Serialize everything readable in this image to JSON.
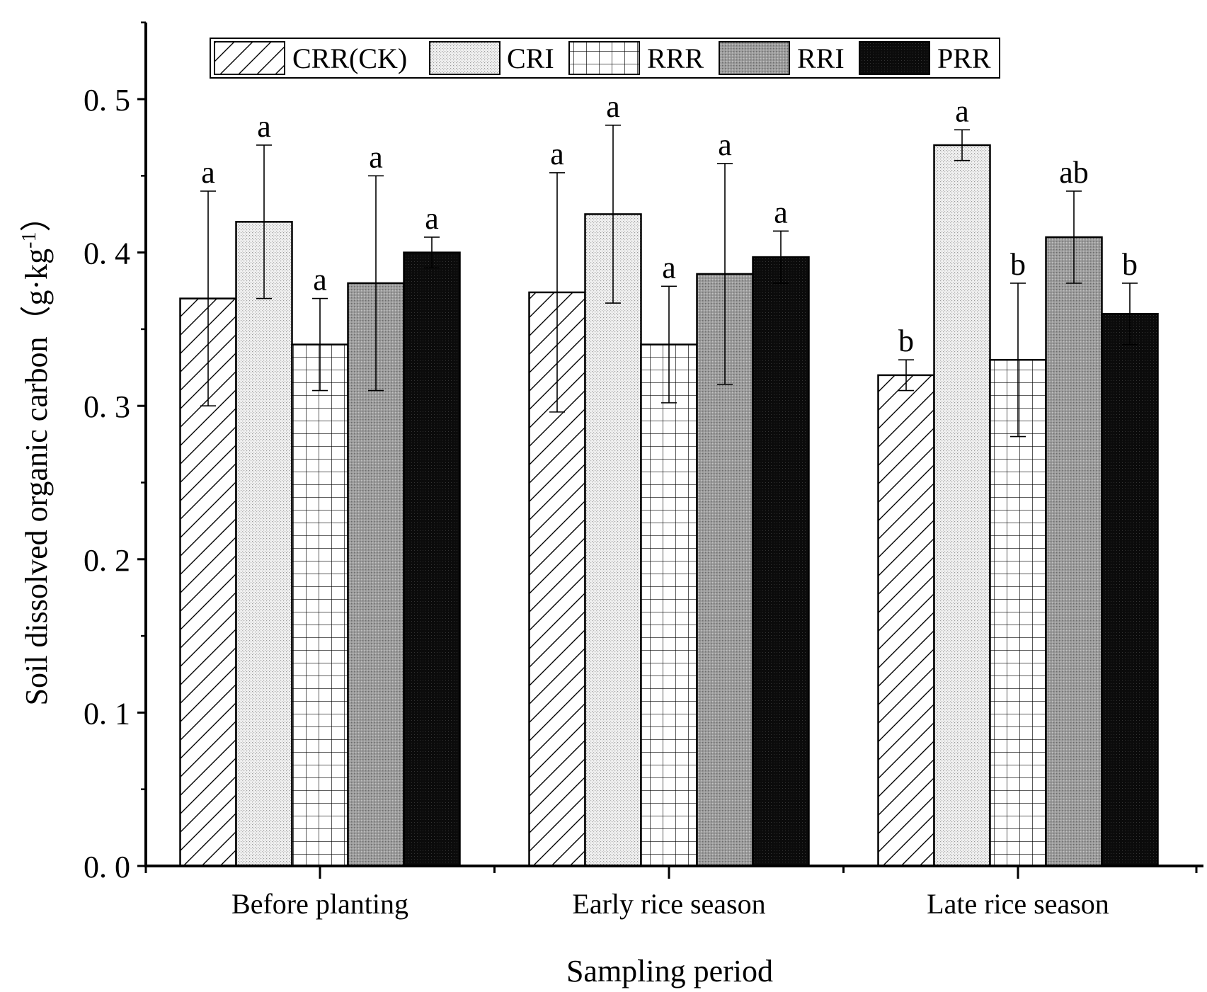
{
  "chart_data": {
    "type": "bar",
    "title": "",
    "xlabel": "Sampling period",
    "ylabel": "Soil dissolved organic carbon（g·kg",
    "ylabel_sup": "-1",
    "ylabel_close": "）",
    "ylim": [
      0,
      0.55
    ],
    "yticks": [
      0.0,
      0.1,
      0.2,
      0.3,
      0.4,
      0.5
    ],
    "ytick_labels": [
      "0. 0",
      "0. 1",
      "0. 2",
      "0. 3",
      "0. 4",
      "0. 5"
    ],
    "categories": [
      "Before planting",
      "Early rice season",
      "Late rice season"
    ],
    "legend_position": "top",
    "series": [
      {
        "name": "CRR(CK)",
        "pattern": "hatch-diagonal",
        "color": "#ffffff",
        "values": [
          0.37,
          0.374,
          0.32
        ],
        "errors": [
          0.07,
          0.078,
          0.01
        ],
        "letters": [
          "a",
          "a",
          "b"
        ]
      },
      {
        "name": "CRI",
        "pattern": "dots-light",
        "color": "#ececec",
        "values": [
          0.42,
          0.425,
          0.47
        ],
        "errors": [
          0.05,
          0.058,
          0.01
        ],
        "letters": [
          "a",
          "a",
          "a"
        ]
      },
      {
        "name": "RRR",
        "pattern": "grid",
        "color": "#ffffff",
        "values": [
          0.34,
          0.34,
          0.33
        ],
        "errors": [
          0.03,
          0.038,
          0.05
        ],
        "letters": [
          "a",
          "a",
          "b"
        ]
      },
      {
        "name": "RRI",
        "pattern": "dots-gray",
        "color": "#9a9a9a",
        "values": [
          0.38,
          0.386,
          0.41
        ],
        "errors": [
          0.07,
          0.072,
          0.03
        ],
        "letters": [
          "a",
          "a",
          "ab"
        ]
      },
      {
        "name": "PRR",
        "pattern": "dots-dark",
        "color": "#0a0a0a",
        "values": [
          0.4,
          0.397,
          0.36
        ],
        "errors": [
          0.01,
          0.017,
          0.02
        ],
        "letters": [
          "a",
          "a",
          "b"
        ]
      }
    ]
  }
}
